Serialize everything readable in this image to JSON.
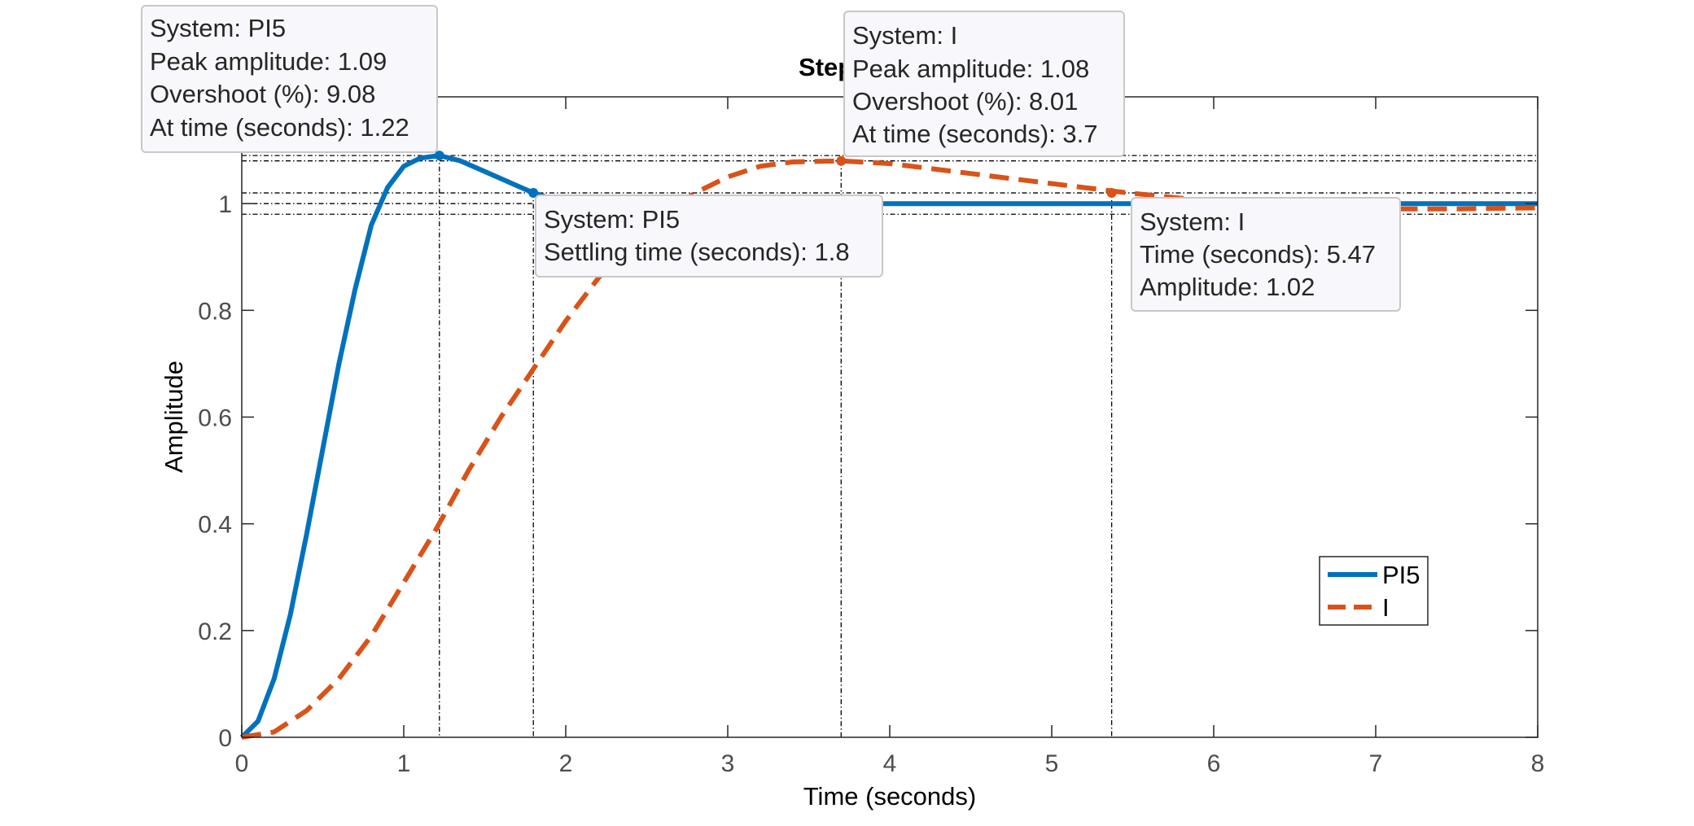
{
  "chart_data": {
    "type": "line",
    "title": "Step Response",
    "xlabel": "Time (seconds)",
    "ylabel": "Amplitude",
    "xlim": [
      0,
      8
    ],
    "ylim": [
      0,
      1.2
    ],
    "xticks": [
      0,
      1,
      2,
      3,
      4,
      5,
      6,
      7,
      8
    ],
    "yticks": [
      0,
      0.2,
      0.4,
      0.6,
      0.8,
      1
    ],
    "xtick_labels": [
      "0",
      "1",
      "2",
      "3",
      "4",
      "5",
      "6",
      "7",
      "8"
    ],
    "ytick_labels": [
      "0",
      "0.2",
      "0.4",
      "0.6",
      "0.8",
      "1"
    ],
    "grid": false,
    "legend_position": "lower-right",
    "series": [
      {
        "name": "PI5",
        "color": "#0072BD",
        "style": "solid",
        "x": [
          0,
          0.1,
          0.2,
          0.3,
          0.4,
          0.5,
          0.6,
          0.7,
          0.8,
          0.9,
          1.0,
          1.1,
          1.22,
          1.35,
          1.5,
          1.65,
          1.8,
          1.95,
          2.1,
          2.3,
          2.6,
          3.0,
          4.0,
          5.0,
          6.0,
          7.0,
          8.0
        ],
        "y": [
          0,
          0.03,
          0.11,
          0.23,
          0.38,
          0.54,
          0.7,
          0.84,
          0.96,
          1.03,
          1.07,
          1.085,
          1.09,
          1.08,
          1.06,
          1.04,
          1.02,
          1.005,
          0.998,
          0.996,
          0.998,
          1.0,
          1.0,
          1.0,
          1.0,
          1.0,
          1.0
        ]
      },
      {
        "name": "I",
        "color": "#D95319",
        "style": "dashed",
        "x": [
          0,
          0.2,
          0.4,
          0.6,
          0.8,
          1.0,
          1.2,
          1.4,
          1.6,
          1.8,
          2.0,
          2.2,
          2.4,
          2.6,
          2.8,
          3.0,
          3.2,
          3.4,
          3.7,
          4.0,
          4.4,
          4.8,
          5.2,
          5.47,
          5.8,
          6.2,
          6.6,
          7.0,
          7.5,
          8.0
        ],
        "y": [
          0,
          0.01,
          0.05,
          0.11,
          0.19,
          0.29,
          0.39,
          0.5,
          0.6,
          0.69,
          0.78,
          0.86,
          0.93,
          0.98,
          1.02,
          1.05,
          1.07,
          1.078,
          1.08,
          1.075,
          1.06,
          1.045,
          1.03,
          1.02,
          1.01,
          1.0,
          0.993,
          0.99,
          0.99,
          0.992
        ]
      }
    ],
    "markers": [
      {
        "series": "PI5",
        "x": 1.22,
        "y": 1.09,
        "kind": "peak"
      },
      {
        "series": "PI5",
        "x": 1.8,
        "y": 1.02,
        "kind": "settling"
      },
      {
        "series": "I",
        "x": 3.7,
        "y": 1.08,
        "kind": "peak"
      },
      {
        "series": "I",
        "x": 5.37,
        "y": 1.02,
        "kind": "settling"
      }
    ],
    "settling_band": [
      0.98,
      1.02
    ],
    "reference_lines_y": [
      1.09,
      1.08,
      1.0
    ]
  },
  "datatips": {
    "pi5_peak": {
      "line1": "System: PI5",
      "line2": "Peak amplitude: 1.09",
      "line3": "Overshoot (%): 9.08",
      "line4": "At time (seconds): 1.22"
    },
    "pi5_settling": {
      "line1": "System: PI5",
      "line2": "Settling time (seconds): 1.8"
    },
    "i_peak": {
      "line1": "System: I",
      "line2": "Peak amplitude: 1.08",
      "line3": "Overshoot (%): 8.01",
      "line4": "At time (seconds): 3.7"
    },
    "i_point": {
      "line1": "System: I",
      "line2": "Time (seconds): 5.47",
      "line3": "Amplitude: 1.02"
    }
  },
  "legend": {
    "items": [
      {
        "label": "PI5",
        "color": "#0072BD",
        "style": "solid"
      },
      {
        "label": "I",
        "color": "#D95319",
        "style": "dashed"
      }
    ]
  },
  "colors": {
    "axes": "#262626",
    "tip_background": "#F8F8FC",
    "tip_border": "#C8C8C8"
  }
}
